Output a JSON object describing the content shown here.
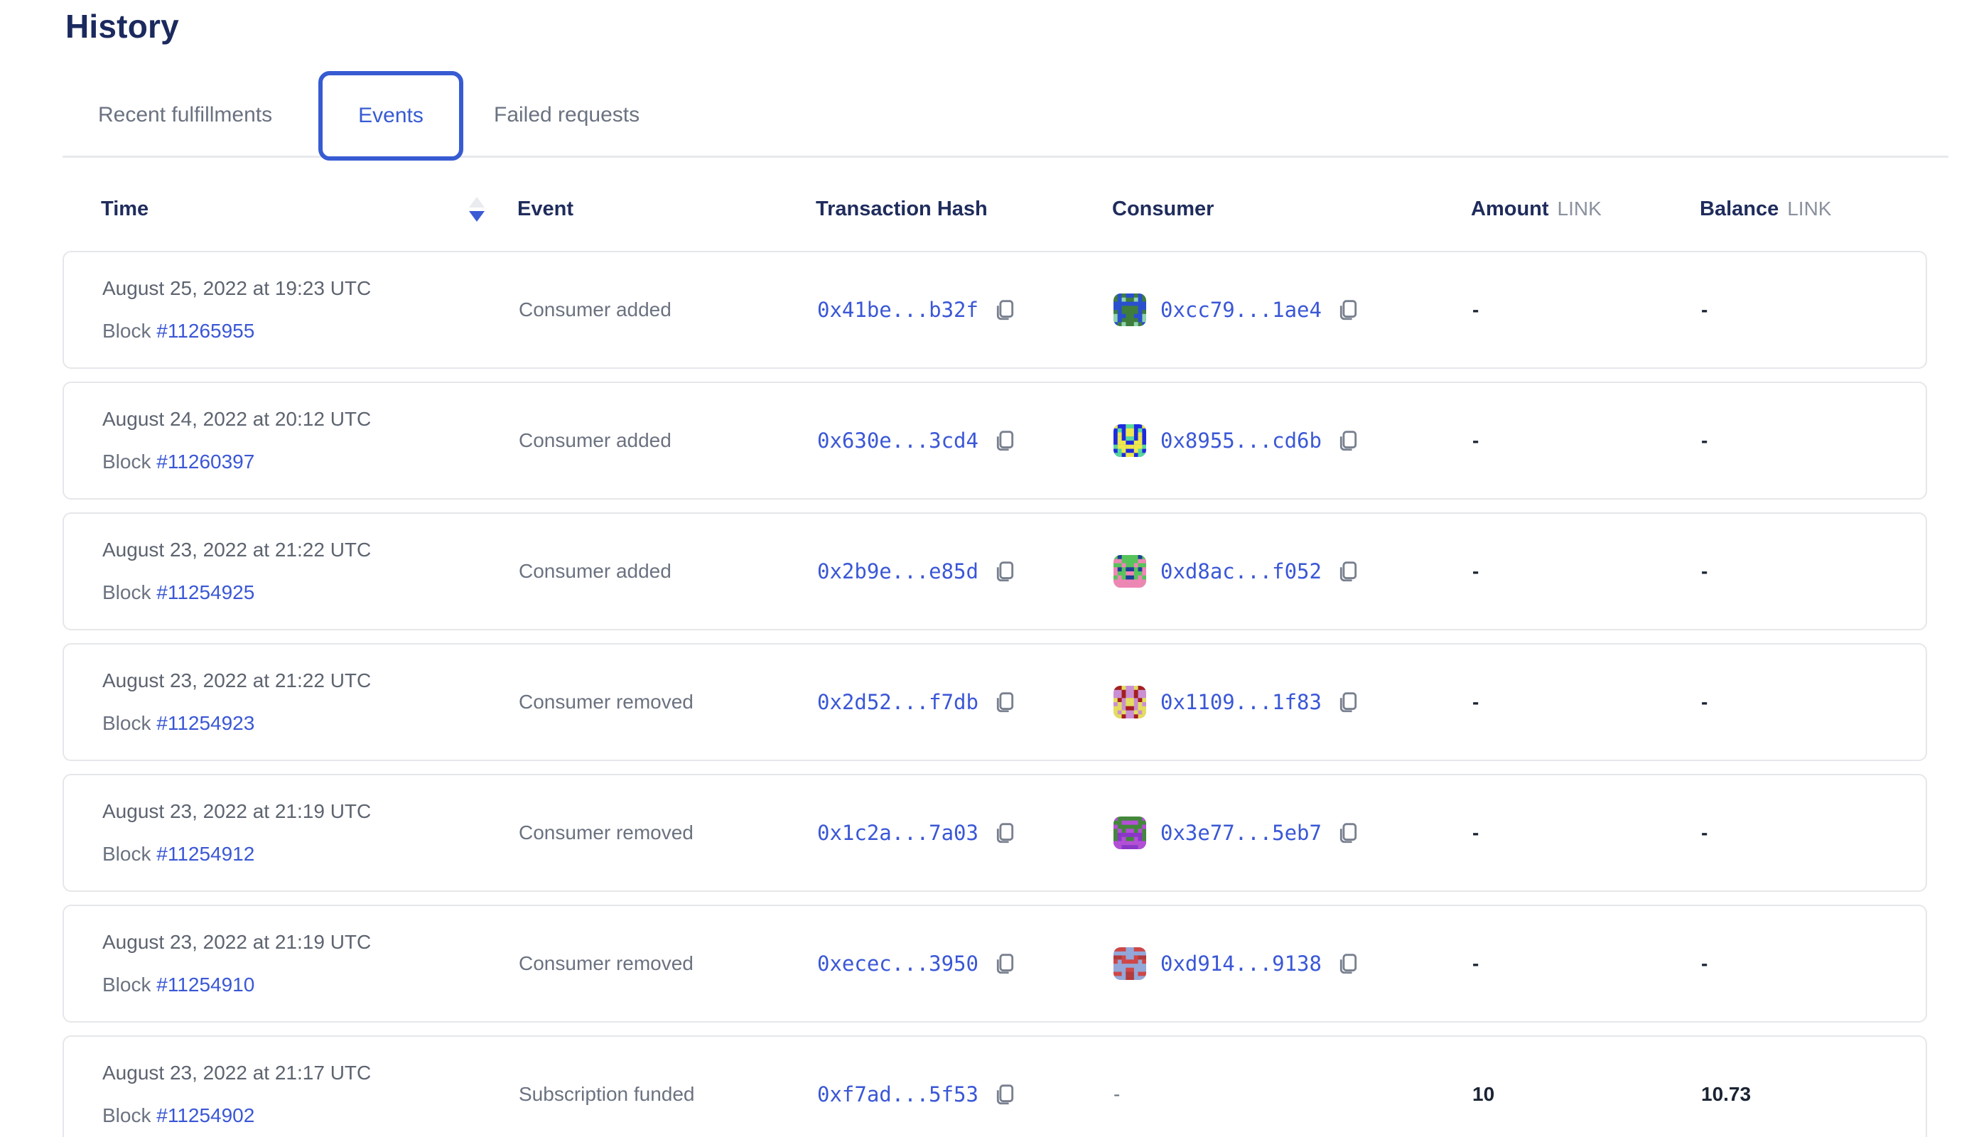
{
  "page_title": "History",
  "tabs": [
    {
      "label": "Recent fulfillments",
      "active": false
    },
    {
      "label": "Events",
      "active": true
    },
    {
      "label": "Failed requests",
      "active": false
    }
  ],
  "colors": {
    "accent_blue": "#375bd2",
    "link_blue": "#3a57d6",
    "heading_navy": "#1b2a5e",
    "text_gray": "#6b7280",
    "value_dark": "#1a2433",
    "card_border": "#e5e7ea"
  },
  "icons": {
    "sort": "sort-descending",
    "copy": "copy-pages",
    "consumer_avatar": "pixel-identicon"
  },
  "table": {
    "block_prefix": "Block",
    "empty_value": "-",
    "columns": [
      {
        "label": "Time",
        "sort": "desc"
      },
      {
        "label": "Event"
      },
      {
        "label": "Transaction Hash"
      },
      {
        "label": "Consumer"
      },
      {
        "label": "Amount",
        "unit": "LINK"
      },
      {
        "label": "Balance",
        "unit": "LINK"
      }
    ],
    "rows": [
      {
        "date": "August 25, 2022 at 19:23 UTC",
        "block": "#11265955",
        "event": "Consumer added",
        "tx_hash": "0x41be...b32f",
        "consumer": {
          "address": "0xcc79...1ae4",
          "icon_colors": [
            "#3f7d3c",
            "#2a4fd0",
            "#8fd3b0"
          ]
        },
        "amount": "-",
        "balance": "-"
      },
      {
        "date": "August 24, 2022 at 20:12 UTC",
        "block": "#11260397",
        "event": "Consumer added",
        "tx_hash": "0x630e...3cd4",
        "consumer": {
          "address": "0x8955...cd6b",
          "icon_colors": [
            "#1f2ae0",
            "#ece84e",
            "#59d89c"
          ]
        },
        "amount": "-",
        "balance": "-"
      },
      {
        "date": "August 23, 2022 at 21:22 UTC",
        "block": "#11254925",
        "event": "Consumer added",
        "tx_hash": "0x2b9e...e85d",
        "consumer": {
          "address": "0xd8ac...f052",
          "icon_colors": [
            "#57c35b",
            "#ef86b5",
            "#1c3f96"
          ]
        },
        "amount": "-",
        "balance": "-"
      },
      {
        "date": "August 23, 2022 at 21:22 UTC",
        "block": "#11254923",
        "event": "Consumer removed",
        "tx_hash": "0x2d52...f7db",
        "consumer": {
          "address": "0x1109...1f83",
          "icon_colors": [
            "#c98fd2",
            "#e4dd5d",
            "#a31f1f"
          ]
        },
        "amount": "-",
        "balance": "-"
      },
      {
        "date": "August 23, 2022 at 21:19 UTC",
        "block": "#11254912",
        "event": "Consumer removed",
        "tx_hash": "0x1c2a...7a03",
        "consumer": {
          "address": "0x3e77...5eb7",
          "icon_colors": [
            "#44873c",
            "#b44fd8",
            "#8b36c9"
          ]
        },
        "amount": "-",
        "balance": "-"
      },
      {
        "date": "August 23, 2022 at 21:19 UTC",
        "block": "#11254910",
        "event": "Consumer removed",
        "tx_hash": "0xecec...3950",
        "consumer": {
          "address": "0xd914...9138",
          "icon_colors": [
            "#93a7d8",
            "#cf4646",
            "#b23a3a"
          ]
        },
        "amount": "-",
        "balance": "-"
      },
      {
        "date": "August 23, 2022 at 21:17 UTC",
        "block": "#11254902",
        "event": "Subscription funded",
        "tx_hash": "0xf7ad...5f53",
        "consumer": null,
        "amount": "10",
        "balance": "10.73"
      }
    ]
  }
}
